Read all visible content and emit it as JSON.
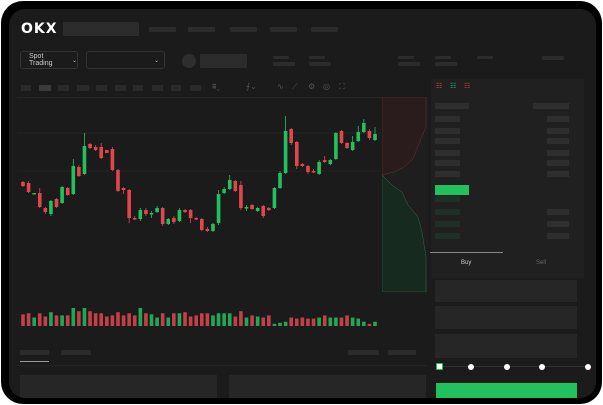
{
  "header": {
    "logo": "OKX"
  },
  "toolbar": {
    "market_selector_label": "Spot Trading",
    "chevron": "⌄",
    "icons": [
      "candle-type-icon",
      "indicator-icon",
      "line-tool-icon",
      "draw-icon",
      "settings-icon",
      "camera-icon",
      "fullscreen-icon"
    ]
  },
  "orderbook": {
    "view_icons": [
      "orderbook-both-icon",
      "orderbook-bids-icon",
      "orderbook-asks-icon"
    ]
  },
  "trade_form": {
    "buy_label": "Buy",
    "sell_label": "Sell",
    "slider_percent": 0,
    "accent": "#22c15e"
  },
  "colors": {
    "up": "#22c15e",
    "down": "#e0474c",
    "background": "#1b1b1b"
  },
  "chart_data": {
    "type": "candlestick",
    "grid": true,
    "candles": [
      [
        69,
        70,
        64,
        65
      ],
      [
        68,
        70,
        58,
        59
      ],
      [
        57,
        58,
        57,
        58
      ],
      [
        58,
        63,
        43,
        44
      ],
      [
        43,
        44,
        37,
        39
      ],
      [
        37,
        51,
        35,
        50
      ],
      [
        52,
        53,
        43,
        44
      ],
      [
        48,
        65,
        47,
        64
      ],
      [
        63,
        64,
        55,
        56
      ],
      [
        57,
        92,
        56,
        85
      ],
      [
        84,
        86,
        74,
        75
      ],
      [
        77,
        118,
        76,
        105
      ],
      [
        107,
        108,
        102,
        103
      ],
      [
        104,
        106,
        100,
        101
      ],
      [
        104,
        108,
        92,
        93
      ],
      [
        101,
        101,
        98,
        98
      ],
      [
        102,
        104,
        80,
        81
      ],
      [
        81,
        82,
        59,
        60
      ],
      [
        63,
        64,
        57,
        61
      ],
      [
        61,
        62,
        28,
        33
      ],
      [
        33,
        35,
        31,
        32
      ],
      [
        32,
        43,
        30,
        41
      ],
      [
        41,
        43,
        35,
        37
      ],
      [
        37,
        40,
        33,
        38
      ],
      [
        39,
        45,
        38,
        43
      ],
      [
        43,
        44,
        25,
        27
      ],
      [
        27,
        33,
        26,
        32
      ],
      [
        33,
        35,
        27,
        29
      ],
      [
        30,
        43,
        29,
        41
      ],
      [
        41,
        42,
        38,
        39
      ],
      [
        41,
        42,
        28,
        33
      ],
      [
        33,
        34,
        31,
        32
      ],
      [
        32,
        33,
        20,
        21
      ],
      [
        22,
        24,
        19,
        20
      ],
      [
        20,
        28,
        19,
        27
      ],
      [
        28,
        61,
        26,
        57
      ],
      [
        58,
        64,
        57,
        62
      ],
      [
        62,
        76,
        61,
        71
      ],
      [
        70,
        71,
        59,
        60
      ],
      [
        66,
        70,
        41,
        43
      ],
      [
        43,
        46,
        40,
        44
      ],
      [
        46,
        47,
        41,
        42
      ],
      [
        40,
        44,
        39,
        43
      ],
      [
        45,
        46,
        33,
        35
      ],
      [
        43,
        44,
        40,
        41
      ],
      [
        43,
        64,
        42,
        63
      ],
      [
        63,
        80,
        62,
        78
      ],
      [
        78,
        135,
        77,
        120
      ],
      [
        122,
        123,
        106,
        108
      ],
      [
        109,
        110,
        82,
        85
      ],
      [
        87,
        88,
        84,
        85
      ],
      [
        85,
        86,
        77,
        79
      ],
      [
        80,
        82,
        78,
        79
      ],
      [
        77,
        91,
        76,
        89
      ],
      [
        91,
        95,
        88,
        89
      ],
      [
        87,
        92,
        86,
        91
      ],
      [
        92,
        119,
        91,
        118
      ],
      [
        120,
        121,
        107,
        108
      ],
      [
        108,
        109,
        102,
        103
      ],
      [
        101,
        115,
        100,
        109
      ],
      [
        110,
        125,
        109,
        119
      ],
      [
        119,
        132,
        118,
        128
      ],
      [
        120,
        122,
        111,
        113
      ],
      [
        111,
        124,
        110,
        117
      ]
    ],
    "candle_fields": [
      "open",
      "high",
      "low",
      "close"
    ],
    "volumes": [
      11,
      12,
      8,
      12,
      9,
      13,
      10,
      10,
      10,
      17,
      14,
      17,
      14,
      12,
      12,
      9,
      10,
      13,
      10,
      12,
      10,
      17,
      12,
      11,
      8,
      12,
      8,
      12,
      12,
      13,
      9,
      10,
      12,
      12,
      10,
      12,
      12,
      12,
      9,
      14,
      8,
      10,
      9,
      8,
      10,
      2,
      3,
      4,
      8,
      7,
      8,
      7,
      7,
      8,
      10,
      8,
      8,
      8,
      10,
      8,
      7,
      4,
      2,
      4
    ]
  }
}
